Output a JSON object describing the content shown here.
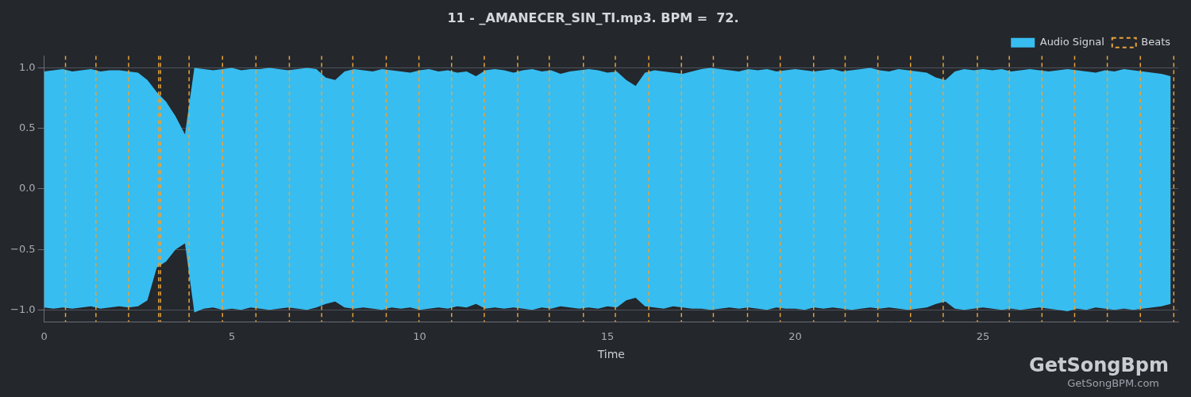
{
  "chart_data": {
    "type": "area",
    "title": "11 - _AMANECER_SIN_TI.mp3. BPM =  72.",
    "x_label": "Time",
    "annotations": [
      "GetSongBpm",
      "GetSongBPM.com"
    ],
    "legend": "upper right",
    "grid": "y",
    "xlim": [
      0,
      30.2
    ],
    "xticks": [
      0,
      5,
      10,
      15,
      20,
      25
    ],
    "ylim": [
      -1.1,
      1.1
    ],
    "yticks": [
      {
        "value": -1,
        "label": "−1.0"
      },
      {
        "value": -0.5,
        "label": "−0.5"
      },
      {
        "value": 0,
        "label": "0.0"
      },
      {
        "value": 0.5,
        "label": "0.5"
      },
      {
        "value": 1,
        "label": "1.0"
      }
    ],
    "x": [
      0,
      0.25,
      0.5,
      0.75,
      1,
      1.25,
      1.5,
      1.75,
      2,
      2.25,
      2.5,
      2.75,
      3,
      3.25,
      3.5,
      3.75,
      4,
      4.25,
      4.5,
      4.75,
      5,
      5.25,
      5.5,
      5.75,
      6,
      6.25,
      6.5,
      6.75,
      7,
      7.25,
      7.5,
      7.75,
      8,
      8.25,
      8.5,
      8.75,
      9,
      9.25,
      9.5,
      9.75,
      10,
      10.25,
      10.5,
      10.75,
      11,
      11.25,
      11.5,
      11.75,
      12,
      12.25,
      12.5,
      12.75,
      13,
      13.25,
      13.5,
      13.75,
      14,
      14.25,
      14.5,
      14.75,
      15,
      15.25,
      15.5,
      15.75,
      16,
      16.25,
      16.5,
      16.75,
      17,
      17.25,
      17.5,
      17.75,
      18,
      18.25,
      18.5,
      18.75,
      19,
      19.25,
      19.5,
      19.75,
      20,
      20.25,
      20.5,
      20.75,
      21,
      21.25,
      21.5,
      21.75,
      22,
      22.25,
      22.5,
      22.75,
      23,
      23.25,
      23.5,
      23.75,
      24,
      24.25,
      24.5,
      24.75,
      25,
      25.25,
      25.5,
      25.75,
      26,
      26.25,
      26.5,
      26.75,
      27,
      27.25,
      27.5,
      27.75,
      28,
      28.25,
      28.5,
      28.75,
      29,
      29.25,
      29.5,
      29.75,
      30
    ],
    "series": [
      {
        "name": "Audio Signal",
        "color": "#38bdf0",
        "values": [
          0.97,
          0.98,
          0.99,
          0.97,
          0.98,
          0.99,
          0.97,
          0.98,
          0.98,
          0.97,
          0.96,
          0.9,
          0.8,
          0.72,
          0.6,
          0.45,
          1.0,
          0.99,
          0.98,
          0.99,
          1.0,
          0.98,
          0.99,
          0.99,
          1.0,
          0.99,
          0.98,
          0.99,
          1.0,
          0.99,
          0.92,
          0.9,
          0.97,
          0.99,
          0.98,
          0.97,
          0.99,
          0.98,
          0.97,
          0.96,
          0.98,
          0.99,
          0.97,
          0.98,
          0.96,
          0.97,
          0.93,
          0.98,
          0.99,
          0.98,
          0.96,
          0.98,
          0.99,
          0.97,
          0.98,
          0.95,
          0.97,
          0.98,
          0.99,
          0.98,
          0.96,
          0.97,
          0.9,
          0.85,
          0.96,
          0.98,
          0.97,
          0.96,
          0.95,
          0.97,
          0.99,
          1.0,
          0.99,
          0.98,
          0.97,
          0.99,
          0.98,
          0.99,
          0.97,
          0.98,
          0.99,
          0.98,
          0.97,
          0.98,
          0.99,
          0.97,
          0.98,
          0.99,
          1.0,
          0.98,
          0.97,
          0.99,
          0.98,
          0.97,
          0.96,
          0.92,
          0.9,
          0.97,
          0.99,
          0.98,
          0.99,
          0.98,
          0.99,
          0.97,
          0.98,
          0.99,
          0.98,
          0.97,
          0.98,
          0.99,
          0.98,
          0.97,
          0.96,
          0.98,
          0.97,
          0.99,
          0.98,
          0.97,
          0.96,
          0.95,
          0.93
        ],
        "lower": [
          -0.98,
          -0.99,
          -0.98,
          -0.99,
          -0.98,
          -0.97,
          -0.99,
          -0.98,
          -0.97,
          -0.98,
          -0.97,
          -0.92,
          -0.65,
          -0.6,
          -0.5,
          -0.45,
          -1.02,
          -0.99,
          -0.98,
          -1.0,
          -0.99,
          -1.0,
          -0.98,
          -0.99,
          -1.0,
          -0.99,
          -0.98,
          -0.99,
          -1.0,
          -0.98,
          -0.95,
          -0.93,
          -0.98,
          -0.99,
          -0.98,
          -0.99,
          -1.0,
          -0.98,
          -0.99,
          -0.98,
          -1.0,
          -0.99,
          -0.98,
          -0.99,
          -0.97,
          -0.98,
          -0.95,
          -0.99,
          -0.98,
          -0.99,
          -0.98,
          -0.99,
          -1.0,
          -0.98,
          -0.99,
          -0.97,
          -0.98,
          -0.99,
          -0.98,
          -0.99,
          -0.97,
          -0.98,
          -0.92,
          -0.9,
          -0.97,
          -0.98,
          -0.99,
          -0.97,
          -0.98,
          -0.99,
          -0.99,
          -1.0,
          -0.99,
          -0.98,
          -0.99,
          -0.98,
          -0.99,
          -1.0,
          -0.98,
          -0.99,
          -0.99,
          -1.0,
          -0.98,
          -0.99,
          -0.98,
          -0.99,
          -1.0,
          -0.99,
          -0.98,
          -0.99,
          -0.98,
          -0.99,
          -1.0,
          -0.99,
          -0.98,
          -0.95,
          -0.93,
          -0.99,
          -1.0,
          -0.99,
          -0.98,
          -0.99,
          -1.0,
          -0.99,
          -1.0,
          -0.99,
          -0.98,
          -0.99,
          -1.0,
          -1.01,
          -0.99,
          -1.0,
          -0.98,
          -0.99,
          -1.0,
          -0.99,
          -1.0,
          -0.99,
          -0.98,
          -0.97,
          -0.95
        ]
      },
      {
        "name": "Beats",
        "color": "#e8a33a",
        "line_style": "dashed",
        "x": [
          0.57,
          1.38,
          2.25,
          3.05,
          3.1,
          3.86,
          4.75,
          5.64,
          6.53,
          7.39,
          8.22,
          9.11,
          9.98,
          10.85,
          11.72,
          12.61,
          13.45,
          14.36,
          15.21,
          16.1,
          16.97,
          17.82,
          18.73,
          19.6,
          20.49,
          21.33,
          22.2,
          23.07,
          23.94,
          24.85,
          25.7,
          26.57,
          27.44,
          28.31,
          29.19,
          30.08
        ]
      }
    ]
  }
}
